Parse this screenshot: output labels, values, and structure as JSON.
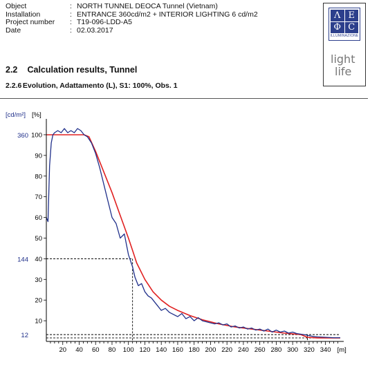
{
  "header": {
    "rows": [
      {
        "key": "Object",
        "value": "NORTH TUNNEL DEOCA Tunnel (Vietnam)"
      },
      {
        "key": "Installation",
        "value": "ENTRANCE 360cd/m2 + INTERIOR LIGHTING 6 cd/m2"
      },
      {
        "key": "Project number",
        "value": "T19-096-LDD-A5"
      },
      {
        "key": "Date",
        "value": "02.03.2017"
      }
    ],
    "separator": ":"
  },
  "logo": {
    "letters": [
      "Λ",
      "Ε",
      "Φ",
      "C"
    ],
    "caption": "ILLUMINAZIONE",
    "line1": "light",
    "line2": "life",
    "color": "#2c3f8c"
  },
  "section": {
    "number": "2.2",
    "title": "Calculation results, Tunnel"
  },
  "subsection": {
    "number": "2.2.6",
    "title": "Evolution, Adattamento (L), S1: 100%, Obs. 1"
  },
  "chart_data": {
    "type": "line",
    "xlabel": "[m]",
    "ylabel_unit": "[cd/m²]",
    "ylabel_percent": "[%]",
    "xlim": [
      0,
      358
    ],
    "ylim": [
      0,
      105
    ],
    "x_ticks": [
      20,
      40,
      60,
      80,
      100,
      120,
      140,
      160,
      180,
      200,
      220,
      240,
      260,
      280,
      300,
      320,
      340
    ],
    "y_ticks": [
      10,
      20,
      30,
      40,
      50,
      60,
      70,
      80,
      90,
      100
    ],
    "left_labels": [
      {
        "text": "360",
        "y": 100
      },
      {
        "text": "144",
        "y": 40
      },
      {
        "text": "12",
        "y": 3.3
      }
    ],
    "reference_lines": [
      {
        "y": 40,
        "x_end": 105
      },
      {
        "y": 3.3
      },
      {
        "y": 1.7
      }
    ],
    "series": [
      {
        "color": "#e02020",
        "x": [
          0,
          46,
          52,
          60,
          70,
          80,
          90,
          100,
          105,
          110,
          120,
          130,
          140,
          150,
          160,
          175,
          190,
          210,
          230,
          250,
          270,
          290,
          310,
          318,
          330,
          358
        ],
        "y": [
          100,
          100,
          99,
          92,
          82,
          72,
          61,
          50,
          44,
          38,
          30,
          24,
          20,
          17,
          15,
          12.5,
          10.5,
          8.5,
          7,
          6,
          5,
          4,
          3.3,
          2,
          1.7,
          1.7
        ]
      },
      {
        "color": "#1f2f8a",
        "x": [
          0,
          2,
          4,
          6,
          8,
          10,
          14,
          18,
          22,
          26,
          30,
          34,
          38,
          42,
          46,
          50,
          55,
          60,
          65,
          70,
          75,
          80,
          85,
          90,
          95,
          100,
          105,
          108,
          112,
          116,
          120,
          124,
          128,
          132,
          136,
          140,
          145,
          150,
          155,
          160,
          165,
          170,
          175,
          180,
          185,
          190,
          195,
          200,
          205,
          210,
          215,
          220,
          225,
          230,
          235,
          240,
          245,
          250,
          255,
          260,
          265,
          270,
          275,
          280,
          285,
          290,
          295,
          300,
          305,
          310,
          315,
          320,
          325,
          330,
          340,
          350,
          358
        ],
        "y": [
          60,
          58,
          85,
          96,
          100,
          101,
          102,
          101,
          103,
          101,
          102,
          101,
          103,
          102,
          100,
          99,
          96,
          91,
          84,
          76,
          68,
          60,
          57,
          50,
          52,
          42,
          36,
          31,
          27,
          28,
          24,
          22,
          21,
          19,
          17,
          15,
          16,
          14,
          13,
          12,
          13.5,
          11,
          12,
          10,
          11.5,
          10,
          9.5,
          9,
          8.5,
          9,
          8,
          8.5,
          7,
          7.5,
          6.5,
          7,
          6,
          6.5,
          5.5,
          6,
          5,
          6,
          4.5,
          5.5,
          4.5,
          5,
          4,
          4.5,
          3.8,
          3.5,
          3.2,
          2.8,
          2.4,
          2.2,
          2,
          1.8,
          1.8
        ]
      }
    ]
  }
}
